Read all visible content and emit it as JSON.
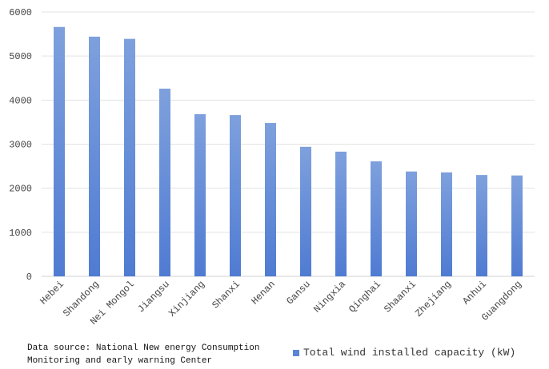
{
  "chart_data": {
    "type": "bar",
    "categories": [
      "Hebei",
      "Shandong",
      "Nei Mongol",
      "Jiangsu",
      "Xinjiang",
      "Shanxi",
      "Henan",
      "Gansu",
      "Ningxia",
      "Qinghai",
      "Shaanxi",
      "Zhejiang",
      "Anhui",
      "Guangdong"
    ],
    "series": [
      {
        "name": "Total wind installed capacity (kW)",
        "values": [
          5660,
          5440,
          5390,
          4260,
          3680,
          3660,
          3480,
          2940,
          2830,
          2610,
          2380,
          2360,
          2300,
          2290
        ],
        "color": "#5b86d6"
      }
    ],
    "y_ticks": [
      "0",
      "1000",
      "2000",
      "3000",
      "4000",
      "5000",
      "6000"
    ],
    "ylim": [
      0,
      6000
    ],
    "grid": true,
    "legend_position": "bottom-right"
  },
  "footer": {
    "source_line1": "Data source: National New energy Consumption",
    "source_line2": "Monitoring and early warning Center"
  },
  "legend": {
    "label": "Total wind installed capacity (kW)"
  }
}
